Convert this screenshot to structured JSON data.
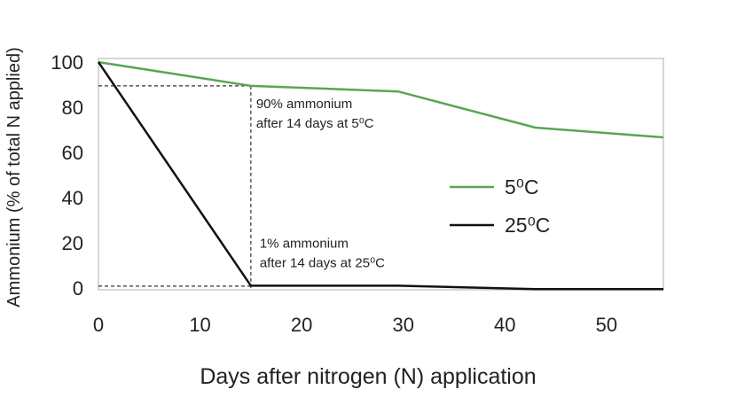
{
  "chart_data": {
    "type": "line",
    "x_label": "Days after nitrogen (N) application",
    "y_label": "Ammonium (% of total N applied)",
    "xlim": [
      0,
      55.6
    ],
    "ylim": [
      -0.8,
      101.6
    ],
    "xticks": [
      0,
      10,
      20,
      30,
      40,
      50
    ],
    "yticks": [
      0,
      20,
      40,
      60,
      80,
      100
    ],
    "grid": false,
    "series": [
      {
        "name": "5⁰C",
        "color": "#5aa552",
        "x": [
          0,
          15,
          29.5,
          43,
          55.6
        ],
        "values": [
          100,
          89.5,
          87,
          71,
          66.7
        ]
      },
      {
        "name": "25⁰C",
        "color": "#111111",
        "x": [
          0,
          15,
          29.5,
          43,
          55.6
        ],
        "values": [
          100,
          1,
          1,
          -0.5,
          -0.5
        ]
      }
    ],
    "annotations": [
      {
        "lines": [
          "90% ammonium",
          "after 14 days at 5⁰C"
        ]
      },
      {
        "lines": [
          "1% ammonium",
          "after 14 days at 25⁰C"
        ]
      }
    ]
  }
}
